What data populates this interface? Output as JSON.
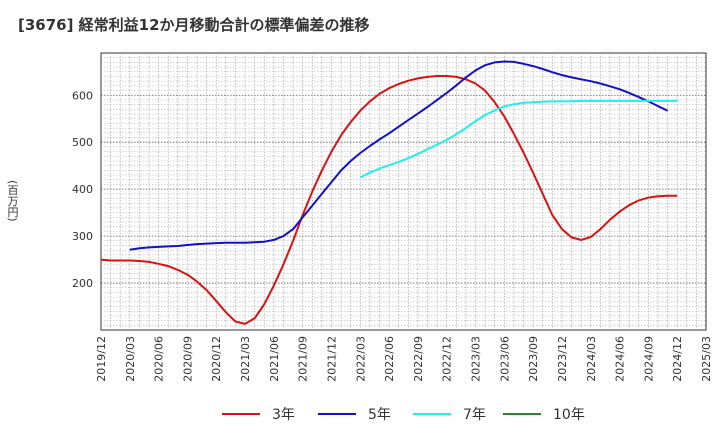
{
  "chart_data": {
    "type": "line",
    "title": "[3676]  経常利益12か月移動合計の標準偏差の推移",
    "ylabel": "(百万円)",
    "xlabel": "",
    "ylim": [
      100,
      690
    ],
    "yticks": [
      200,
      300,
      400,
      500,
      600
    ],
    "x_ticks": [
      "2019/12",
      "2020/03",
      "2020/06",
      "2020/09",
      "2020/12",
      "2021/03",
      "2021/06",
      "2021/09",
      "2021/12",
      "2022/03",
      "2022/06",
      "2022/09",
      "2022/12",
      "2023/03",
      "2023/06",
      "2023/09",
      "2023/12",
      "2024/03",
      "2024/06",
      "2024/09",
      "2024/12",
      "2025/03"
    ],
    "grid": true,
    "legend_position": "bottom",
    "series": [
      {
        "name": "3年",
        "color": "#dd1111",
        "points": [
          [
            "2019/12",
            250
          ],
          [
            "2020/01",
            248
          ],
          [
            "2020/02",
            248
          ],
          [
            "2020/03",
            248
          ],
          [
            "2020/04",
            247
          ],
          [
            "2020/05",
            245
          ],
          [
            "2020/06",
            241
          ],
          [
            "2020/07",
            236
          ],
          [
            "2020/08",
            228
          ],
          [
            "2020/09",
            218
          ],
          [
            "2020/10",
            203
          ],
          [
            "2020/11",
            185
          ],
          [
            "2020/12",
            162
          ],
          [
            "2021/01",
            138
          ],
          [
            "2021/02",
            118
          ],
          [
            "2021/03",
            113
          ],
          [
            "2021/04",
            125
          ],
          [
            "2021/05",
            155
          ],
          [
            "2021/06",
            195
          ],
          [
            "2021/07",
            240
          ],
          [
            "2021/08",
            290
          ],
          [
            "2021/09",
            345
          ],
          [
            "2021/10",
            395
          ],
          [
            "2021/11",
            440
          ],
          [
            "2021/12",
            480
          ],
          [
            "2022/01",
            515
          ],
          [
            "2022/02",
            543
          ],
          [
            "2022/03",
            567
          ],
          [
            "2022/04",
            587
          ],
          [
            "2022/05",
            603
          ],
          [
            "2022/06",
            615
          ],
          [
            "2022/07",
            624
          ],
          [
            "2022/08",
            631
          ],
          [
            "2022/09",
            636
          ],
          [
            "2022/10",
            639
          ],
          [
            "2022/11",
            641
          ],
          [
            "2022/12",
            641
          ],
          [
            "2023/01",
            639
          ],
          [
            "2023/02",
            634
          ],
          [
            "2023/03",
            625
          ],
          [
            "2023/04",
            610
          ],
          [
            "2023/05",
            585
          ],
          [
            "2023/06",
            555
          ],
          [
            "2023/07",
            518
          ],
          [
            "2023/08",
            478
          ],
          [
            "2023/09",
            435
          ],
          [
            "2023/10",
            390
          ],
          [
            "2023/11",
            345
          ],
          [
            "2023/12",
            315
          ],
          [
            "2024/01",
            297
          ],
          [
            "2024/02",
            292
          ],
          [
            "2024/03",
            298
          ],
          [
            "2024/04",
            315
          ],
          [
            "2024/05",
            335
          ],
          [
            "2024/06",
            352
          ],
          [
            "2024/07",
            366
          ],
          [
            "2024/08",
            376
          ],
          [
            "2024/09",
            382
          ],
          [
            "2024/10",
            385
          ],
          [
            "2024/11",
            386
          ],
          [
            "2024/12",
            386
          ]
        ]
      },
      {
        "name": "5年",
        "color": "#1111cc",
        "points": [
          [
            "2020/03",
            271
          ],
          [
            "2020/04",
            274
          ],
          [
            "2020/05",
            276
          ],
          [
            "2020/06",
            277
          ],
          [
            "2020/07",
            278
          ],
          [
            "2020/08",
            279
          ],
          [
            "2020/09",
            281
          ],
          [
            "2020/10",
            283
          ],
          [
            "2020/11",
            284
          ],
          [
            "2020/12",
            285
          ],
          [
            "2021/01",
            286
          ],
          [
            "2021/02",
            286
          ],
          [
            "2021/03",
            286
          ],
          [
            "2021/04",
            287
          ],
          [
            "2021/05",
            288
          ],
          [
            "2021/06",
            292
          ],
          [
            "2021/07",
            300
          ],
          [
            "2021/08",
            315
          ],
          [
            "2021/09",
            340
          ],
          [
            "2021/10",
            365
          ],
          [
            "2021/11",
            390
          ],
          [
            "2021/12",
            415
          ],
          [
            "2022/01",
            440
          ],
          [
            "2022/02",
            460
          ],
          [
            "2022/03",
            477
          ],
          [
            "2022/04",
            492
          ],
          [
            "2022/05",
            506
          ],
          [
            "2022/06",
            519
          ],
          [
            "2022/07",
            533
          ],
          [
            "2022/08",
            547
          ],
          [
            "2022/09",
            561
          ],
          [
            "2022/10",
            575
          ],
          [
            "2022/11",
            590
          ],
          [
            "2022/12",
            605
          ],
          [
            "2023/01",
            621
          ],
          [
            "2023/02",
            638
          ],
          [
            "2023/03",
            653
          ],
          [
            "2023/04",
            664
          ],
          [
            "2023/05",
            670
          ],
          [
            "2023/06",
            672
          ],
          [
            "2023/07",
            671
          ],
          [
            "2023/08",
            667
          ],
          [
            "2023/09",
            662
          ],
          [
            "2023/10",
            656
          ],
          [
            "2023/11",
            649
          ],
          [
            "2023/12",
            643
          ],
          [
            "2024/01",
            638
          ],
          [
            "2024/02",
            634
          ],
          [
            "2024/03",
            630
          ],
          [
            "2024/04",
            625
          ],
          [
            "2024/05",
            619
          ],
          [
            "2024/06",
            613
          ],
          [
            "2024/07",
            605
          ],
          [
            "2024/08",
            596
          ],
          [
            "2024/09",
            587
          ],
          [
            "2024/10",
            577
          ],
          [
            "2024/11",
            567
          ]
        ]
      },
      {
        "name": "7年",
        "color": "#22eeee",
        "points": [
          [
            "2022/03",
            425
          ],
          [
            "2022/04",
            435
          ],
          [
            "2022/05",
            444
          ],
          [
            "2022/06",
            451
          ],
          [
            "2022/07",
            458
          ],
          [
            "2022/08",
            466
          ],
          [
            "2022/09",
            475
          ],
          [
            "2022/10",
            485
          ],
          [
            "2022/11",
            495
          ],
          [
            "2022/12",
            505
          ],
          [
            "2023/01",
            517
          ],
          [
            "2023/02",
            530
          ],
          [
            "2023/03",
            545
          ],
          [
            "2023/04",
            558
          ],
          [
            "2023/05",
            568
          ],
          [
            "2023/06",
            576
          ],
          [
            "2023/07",
            581
          ],
          [
            "2023/08",
            584
          ],
          [
            "2023/09",
            585
          ],
          [
            "2023/10",
            586
          ],
          [
            "2023/11",
            587
          ],
          [
            "2023/12",
            587
          ],
          [
            "2024/01",
            587
          ],
          [
            "2024/02",
            588
          ],
          [
            "2024/03",
            588
          ],
          [
            "2024/04",
            588
          ],
          [
            "2024/05",
            588
          ],
          [
            "2024/06",
            588
          ],
          [
            "2024/07",
            588
          ],
          [
            "2024/08",
            588
          ],
          [
            "2024/09",
            588
          ],
          [
            "2024/10",
            588
          ],
          [
            "2024/11",
            588
          ],
          [
            "2024/12",
            588
          ]
        ]
      },
      {
        "name": "10年",
        "color": "#228b22",
        "points": []
      }
    ]
  }
}
